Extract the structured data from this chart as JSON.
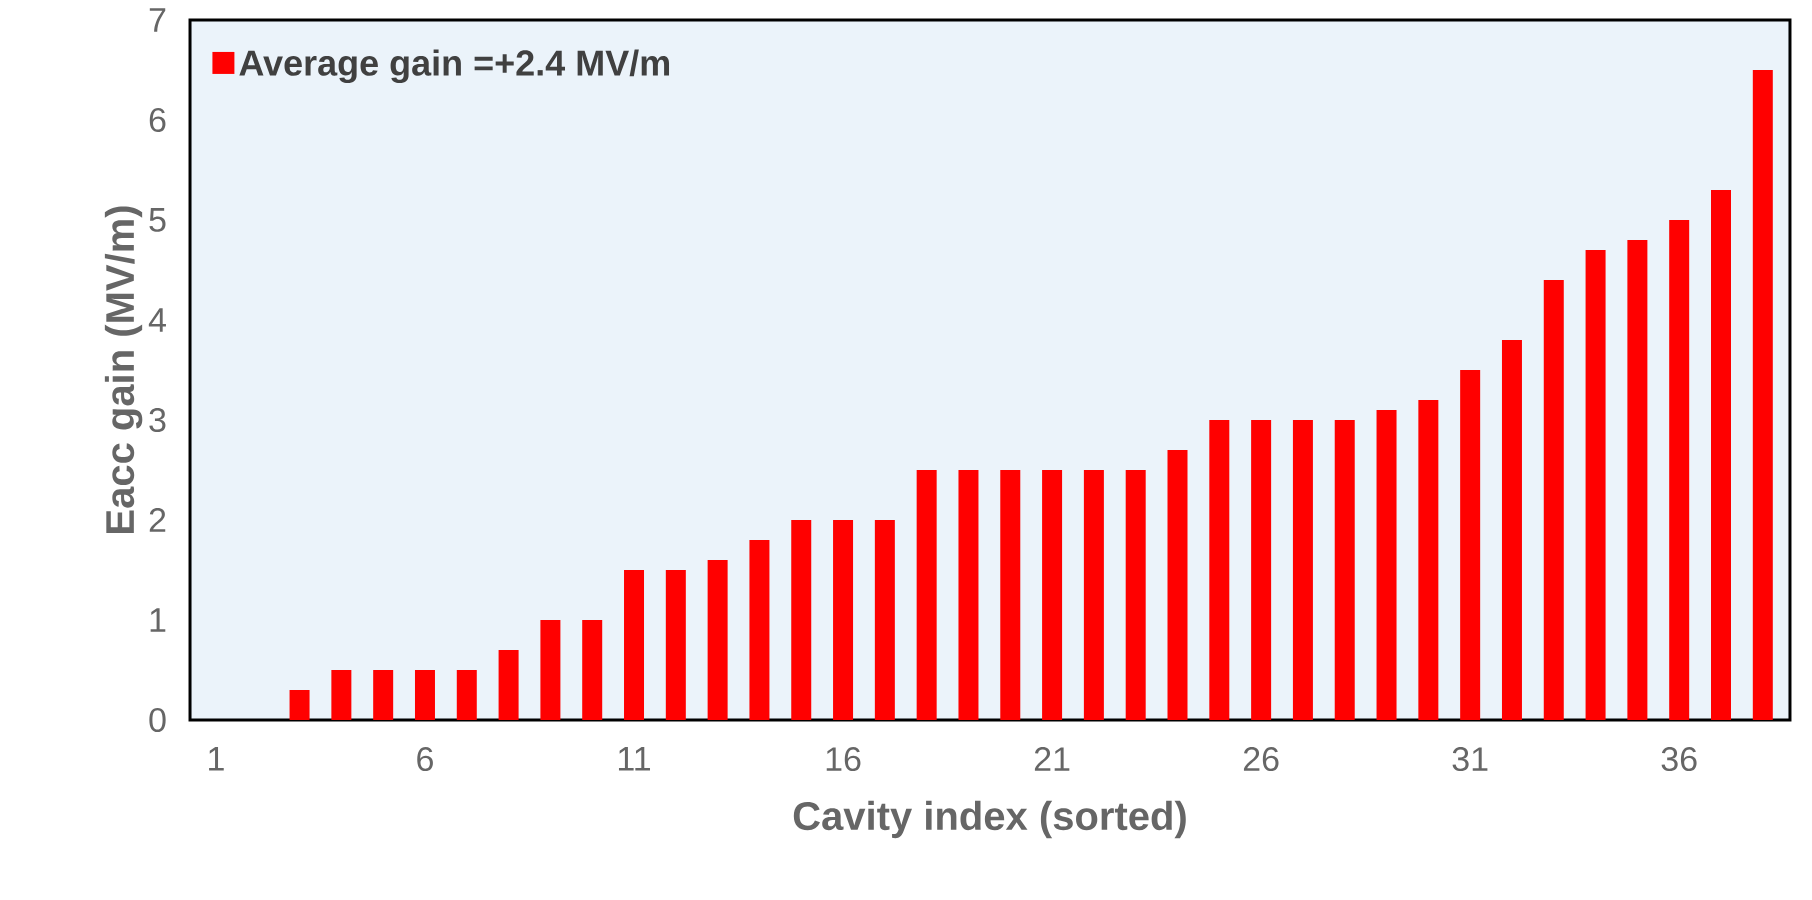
{
  "chart_data": {
    "type": "bar",
    "xlabel": "Cavity index (sorted)",
    "ylabel": "Eacc gain (MV/m)",
    "categories": [
      "1",
      null,
      null,
      null,
      null,
      "6",
      null,
      null,
      null,
      null,
      "11",
      null,
      null,
      null,
      null,
      "16",
      null,
      null,
      null,
      null,
      "21",
      null,
      null,
      null,
      null,
      "26",
      null,
      null,
      null,
      null,
      "31",
      null,
      null,
      null,
      null,
      "36",
      null,
      null
    ],
    "series": [
      {
        "name": "Average gain =+2.4 MV/m",
        "color": "#ff0000",
        "values": [
          0,
          0,
          0.3,
          0.5,
          0.5,
          0.5,
          0.5,
          0.7,
          1.0,
          1.0,
          1.5,
          1.5,
          1.6,
          1.8,
          2.0,
          2.0,
          2.0,
          2.5,
          2.5,
          2.5,
          2.5,
          2.5,
          2.5,
          2.7,
          3.0,
          3.0,
          3.0,
          3.0,
          3.1,
          3.2,
          3.5,
          3.8,
          4.4,
          4.7,
          4.8,
          5.0,
          5.3,
          6.5
        ]
      }
    ],
    "ylim": [
      0,
      7
    ],
    "yticks": [
      0,
      1,
      2,
      3,
      4,
      5,
      6,
      7
    ],
    "grid": false,
    "legend": "top left"
  }
}
